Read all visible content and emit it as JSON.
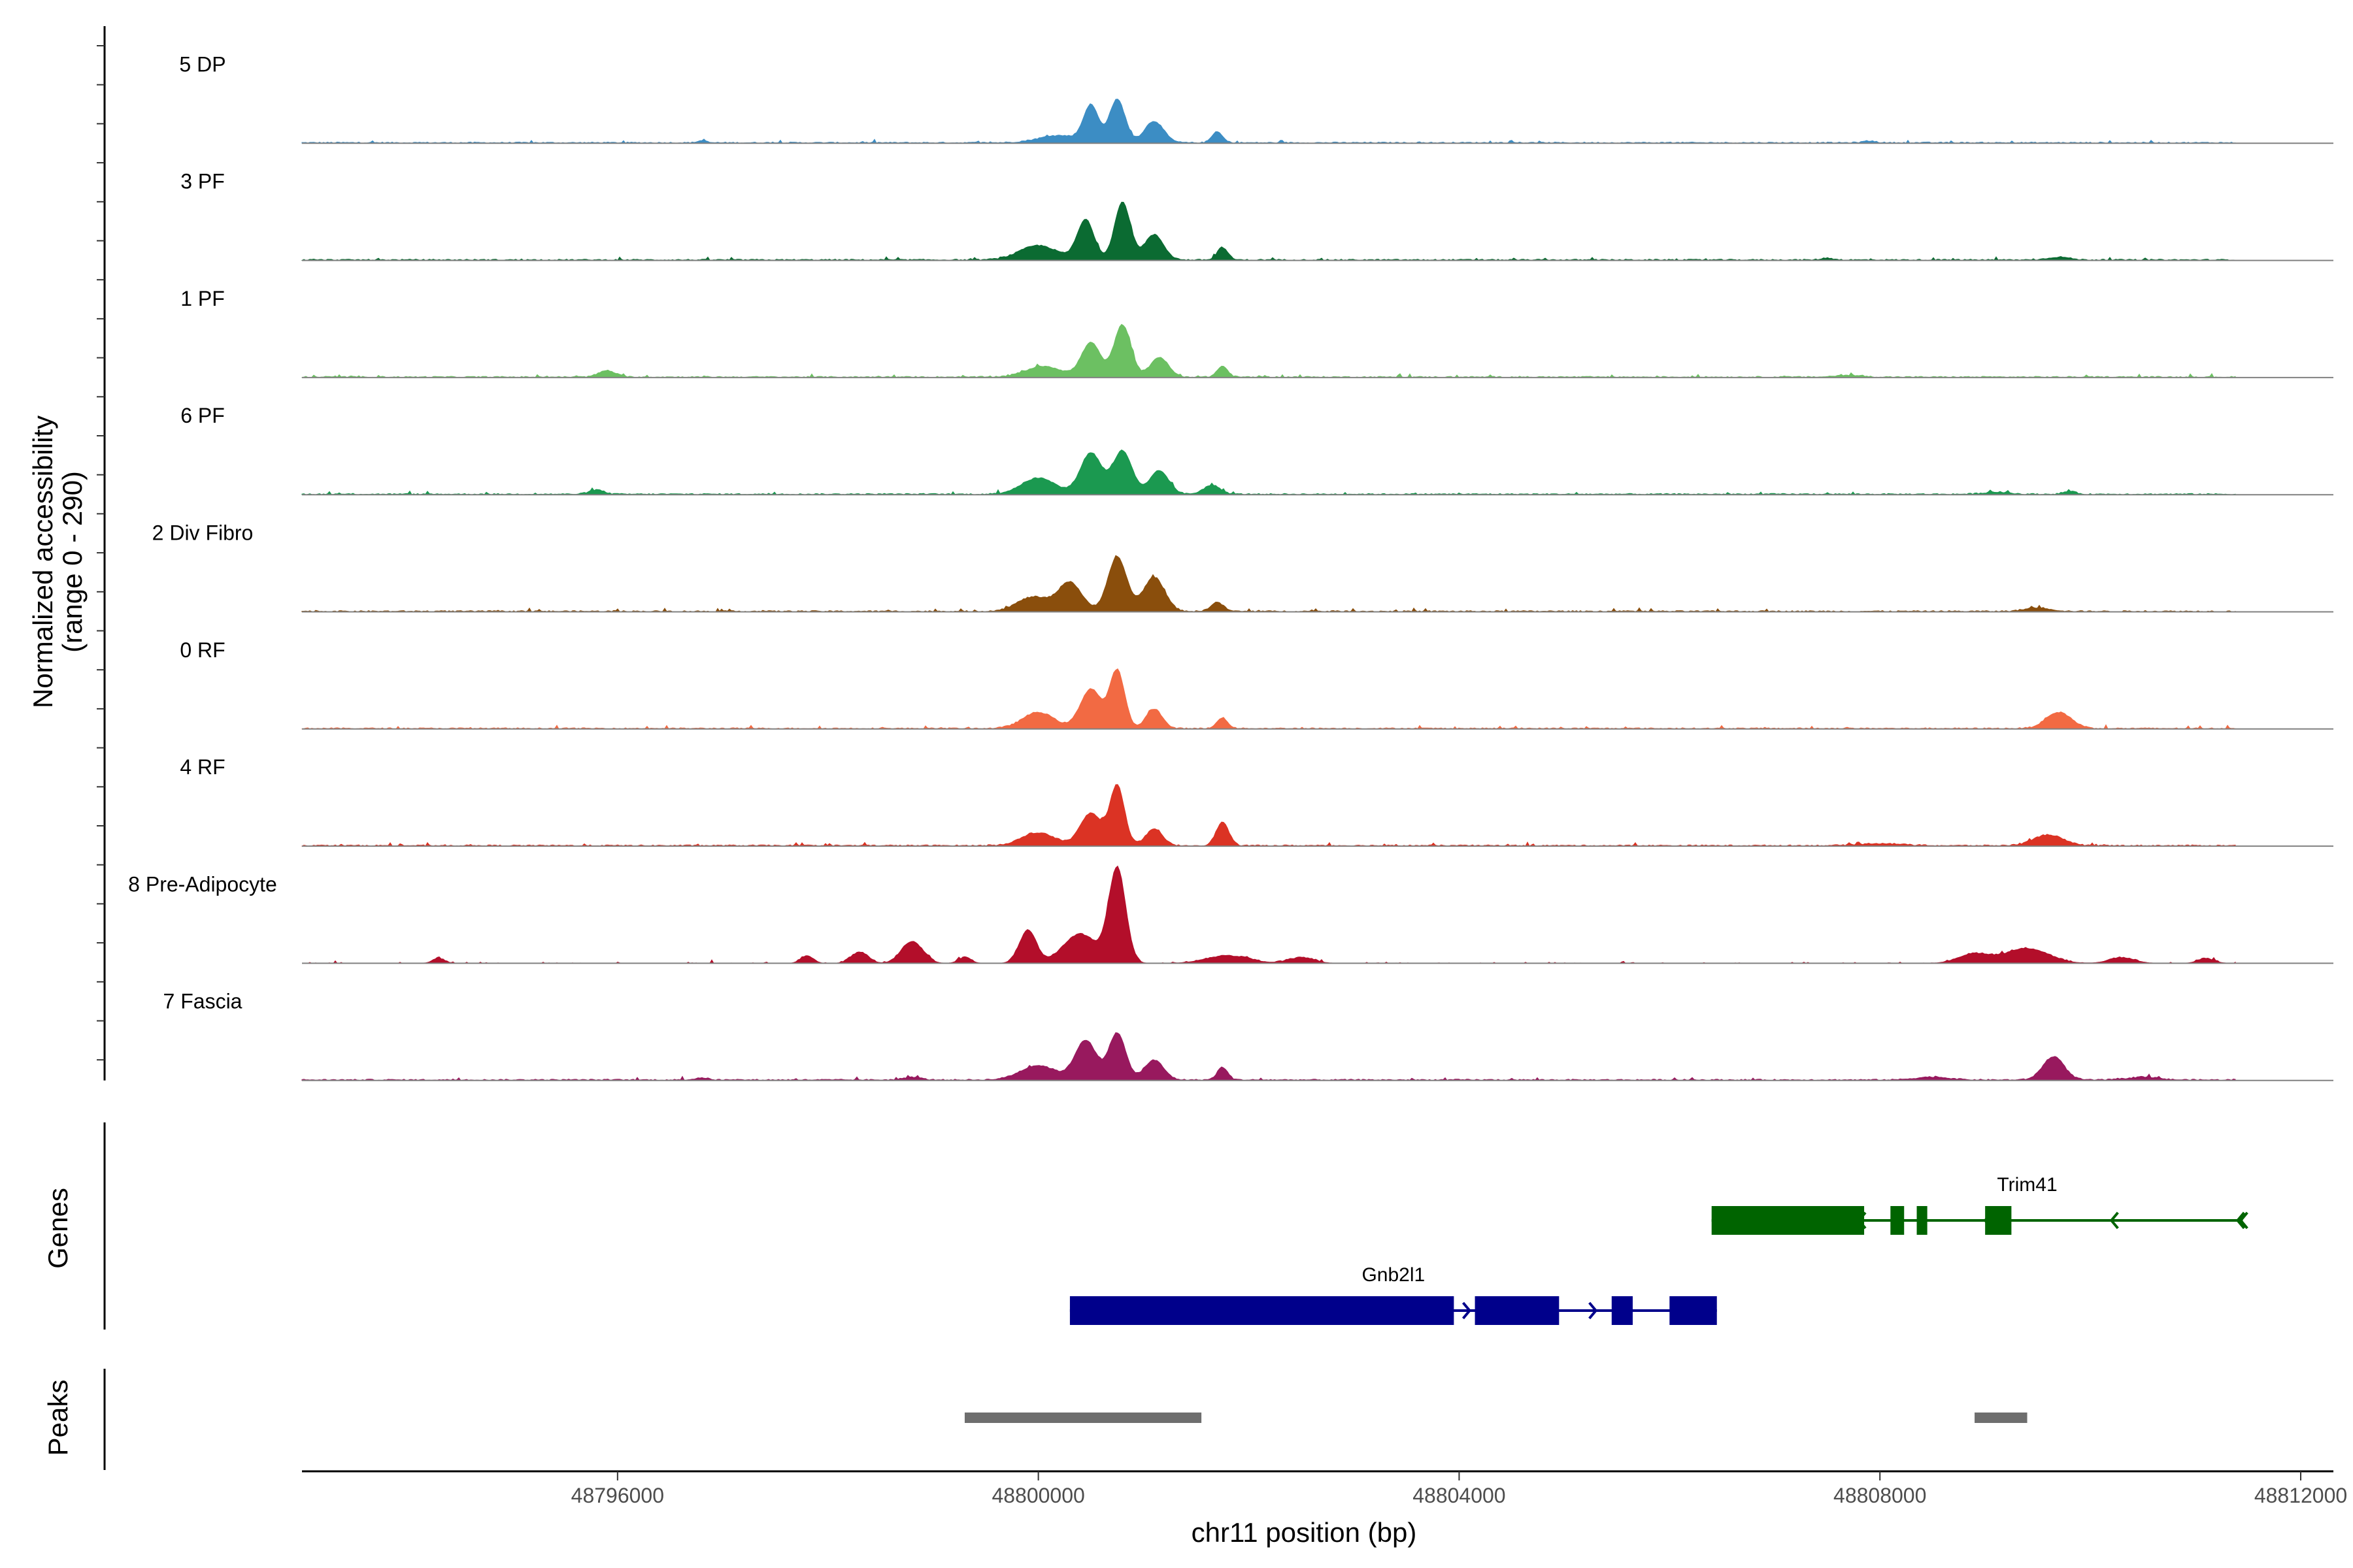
{
  "chart_data": {
    "type": "area",
    "title": "",
    "region": {
      "chromosome": "chr11",
      "start": 48792500,
      "end": 48812300
    },
    "xlabel": "chr11 position (bp)",
    "ylabel_line1": "Normalized accessibility",
    "ylabel_line2": "(range 0 - 290)",
    "ylim": [
      0,
      290
    ],
    "x_ticks": [
      48796000,
      48800000,
      48804000,
      48808000,
      48812000
    ],
    "x_tick_labels": [
      "48796000",
      "48800000",
      "48804000",
      "48808000",
      "48812000"
    ],
    "tracks": [
      {
        "name": "5 DP",
        "color": "#3C8DC4",
        "peaks": [
          [
            48800000,
            100,
            70
          ],
          [
            48800250,
            120,
            75
          ],
          [
            48799700,
            20,
            200
          ],
          [
            48800600,
            60,
            90
          ],
          [
            48801200,
            30,
            50
          ],
          [
            48796300,
            6,
            40
          ],
          [
            48807400,
            5,
            60
          ],
          [
            48811000,
            3,
            40
          ]
        ]
      },
      {
        "name": "3 PF",
        "color": "#0B6B32",
        "peaks": [
          [
            48799950,
            110,
            80
          ],
          [
            48800300,
            160,
            75
          ],
          [
            48799500,
            40,
            180
          ],
          [
            48800600,
            70,
            90
          ],
          [
            48801250,
            35,
            50
          ],
          [
            48807000,
            5,
            60
          ],
          [
            48809200,
            8,
            100
          ]
        ]
      },
      {
        "name": "1 PF",
        "color": "#6CC062",
        "peaks": [
          [
            48800000,
            95,
            90
          ],
          [
            48800300,
            145,
            80
          ],
          [
            48799550,
            30,
            170
          ],
          [
            48800650,
            55,
            85
          ],
          [
            48801250,
            30,
            50
          ],
          [
            48795400,
            18,
            80
          ],
          [
            48807200,
            5,
            120
          ]
        ]
      },
      {
        "name": "6 PF",
        "color": "#1B9950",
        "peaks": [
          [
            48800000,
            115,
            100
          ],
          [
            48800300,
            120,
            90
          ],
          [
            48799500,
            45,
            160
          ],
          [
            48800650,
            65,
            90
          ],
          [
            48801150,
            25,
            80
          ],
          [
            48795300,
            12,
            70
          ],
          [
            48808600,
            6,
            120
          ],
          [
            48809300,
            8,
            60
          ]
        ]
      },
      {
        "name": "2 Div Fibro",
        "color": "#8A4E0C",
        "peaks": [
          [
            48799800,
            80,
            110
          ],
          [
            48800250,
            150,
            90
          ],
          [
            48799450,
            40,
            150
          ],
          [
            48800600,
            95,
            100
          ],
          [
            48801200,
            25,
            60
          ],
          [
            48809000,
            10,
            120
          ]
        ]
      },
      {
        "name": "0 RF",
        "color": "#F26A43",
        "peaks": [
          [
            48800000,
            110,
            100
          ],
          [
            48800250,
            160,
            70
          ],
          [
            48799500,
            45,
            150
          ],
          [
            48800600,
            55,
            75
          ],
          [
            48801250,
            30,
            50
          ],
          [
            48809200,
            45,
            120
          ]
        ]
      },
      {
        "name": "4 RF",
        "color": "#DB3324",
        "peaks": [
          [
            48800000,
            90,
            100
          ],
          [
            48800250,
            165,
            70
          ],
          [
            48799500,
            35,
            160
          ],
          [
            48800600,
            45,
            80
          ],
          [
            48801250,
            65,
            60
          ],
          [
            48809100,
            30,
            140
          ],
          [
            48807500,
            6,
            200
          ]
        ]
      },
      {
        "name": "8 Pre-Adipocyte",
        "color": "#B30E2A",
        "peaks": [
          [
            48800250,
            260,
            80
          ],
          [
            48799900,
            80,
            160
          ],
          [
            48799400,
            90,
            80
          ],
          [
            48798300,
            60,
            100
          ],
          [
            48797800,
            30,
            80
          ],
          [
            48797300,
            20,
            60
          ],
          [
            48798800,
            15,
            60
          ],
          [
            48801300,
            20,
            200
          ],
          [
            48802000,
            15,
            120
          ],
          [
            48808900,
            40,
            200
          ],
          [
            48808400,
            25,
            150
          ],
          [
            48809800,
            15,
            120
          ],
          [
            48810600,
            12,
            80
          ],
          [
            48793800,
            12,
            60
          ]
        ]
      },
      {
        "name": "7 Fascia",
        "color": "#98195E",
        "peaks": [
          [
            48799950,
            110,
            100
          ],
          [
            48800250,
            130,
            80
          ],
          [
            48799500,
            40,
            170
          ],
          [
            48800600,
            55,
            90
          ],
          [
            48801250,
            35,
            50
          ],
          [
            48809150,
            65,
            100
          ],
          [
            48796300,
            6,
            60
          ],
          [
            48798300,
            8,
            80
          ],
          [
            48808000,
            8,
            160
          ],
          [
            48810000,
            8,
            140
          ]
        ]
      }
    ],
    "genes": [
      {
        "name": "Trim41",
        "color": "#006400",
        "strand": "-",
        "start": 48806400,
        "end": 48811450,
        "exons": [
          [
            48806400,
            48807850
          ],
          [
            48808100,
            48808230
          ],
          [
            48808350,
            48808450
          ],
          [
            48809000,
            48809250
          ]
        ]
      },
      {
        "name": "Gnb2l1",
        "color": "#00008B",
        "strand": "+",
        "start": 48800300,
        "end": 48806450,
        "exons": [
          [
            48800300,
            48803950
          ],
          [
            48804150,
            48804950
          ],
          [
            48805450,
            48805650
          ],
          [
            48806000,
            48806450
          ]
        ]
      }
    ],
    "peaks_track": [
      {
        "start": 48799300,
        "end": 48801550
      },
      {
        "start": 48808900,
        "end": 48809400
      }
    ],
    "panel_labels": {
      "genes": "Genes",
      "peaks": "Peaks"
    }
  }
}
